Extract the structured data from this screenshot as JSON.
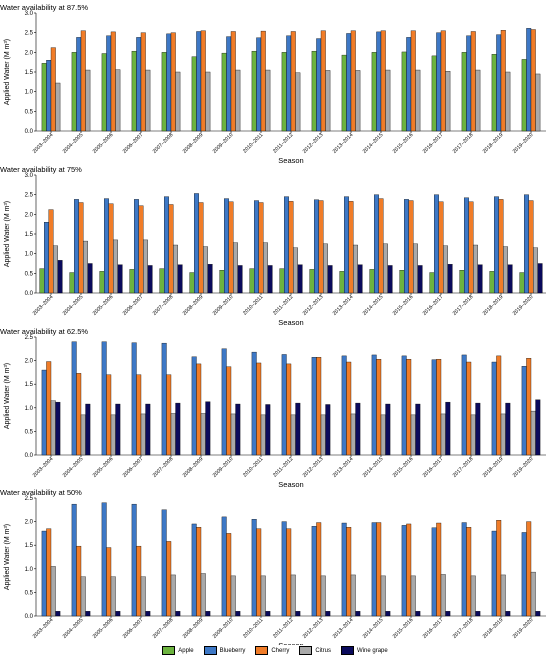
{
  "colors": {
    "Apple": "#6cb33f",
    "Blueberry": "#3d78c6",
    "Cherry": "#f07c28",
    "Citrus": "#a9a9a9",
    "Wine grape": "#0a0a5c"
  },
  "chart_data": [
    {
      "type": "bar",
      "title": "Water availability at 87.5%",
      "xlabel": "Season",
      "ylabel": "Applied Water (M m³)",
      "ylim": [
        0,
        3.0
      ],
      "yticks": [
        0.0,
        0.5,
        1.0,
        1.5,
        2.0,
        2.5,
        3.0
      ],
      "categories": [
        "2003–2004",
        "2004–2005",
        "2005–2006",
        "2006–2007",
        "2007–2008",
        "2008–2009",
        "2009–2010",
        "2010–2011",
        "2011–2012",
        "2012–2013",
        "2013–2014",
        "2014–2015",
        "2015–2016",
        "2016–2017",
        "2017–2018",
        "2018–2019",
        "2019–2020"
      ],
      "series": [
        {
          "name": "Apple",
          "values": [
            1.72,
            2.0,
            1.97,
            2.03,
            2.0,
            1.89,
            1.98,
            2.03,
            2.0,
            2.03,
            1.93,
            2.0,
            2.01,
            1.91,
            2.0,
            1.95,
            1.82
          ]
        },
        {
          "name": "Blueberry",
          "values": [
            1.8,
            2.38,
            2.42,
            2.38,
            2.47,
            2.53,
            2.4,
            2.37,
            2.42,
            2.35,
            2.48,
            2.52,
            2.38,
            2.5,
            2.42,
            2.45,
            2.61
          ]
        },
        {
          "name": "Cherry",
          "values": [
            2.12,
            2.55,
            2.52,
            2.5,
            2.5,
            2.55,
            2.53,
            2.54,
            2.53,
            2.55,
            2.55,
            2.55,
            2.55,
            2.55,
            2.53,
            2.56,
            2.58
          ]
        },
        {
          "name": "Citrus",
          "values": [
            1.22,
            1.55,
            1.56,
            1.55,
            1.5,
            1.5,
            1.55,
            1.55,
            1.48,
            1.54,
            1.54,
            1.55,
            1.55,
            1.52,
            1.55,
            1.5,
            1.45
          ]
        }
      ]
    },
    {
      "type": "bar",
      "title": "Water availability at 75%",
      "xlabel": "Season",
      "ylabel": "Applied Water (M m³)",
      "ylim": [
        0,
        3.0
      ],
      "yticks": [
        0.0,
        0.5,
        1.0,
        1.5,
        2.0,
        2.5,
        3.0
      ],
      "categories": [
        "2003–2004",
        "2004–2005",
        "2005–2006",
        "2006–2007",
        "2007–2008",
        "2008–2009",
        "2009–2010",
        "2010–2011",
        "2011–2012",
        "2012–2013",
        "2013–2014",
        "2014–2015",
        "2015–2016",
        "2016–2017",
        "2017–2018",
        "2018–2019",
        "2019–2020"
      ],
      "series": [
        {
          "name": "Apple",
          "values": [
            0.62,
            0.52,
            0.55,
            0.6,
            0.62,
            0.52,
            0.58,
            0.62,
            0.62,
            0.6,
            0.55,
            0.6,
            0.58,
            0.52,
            0.58,
            0.55,
            0.52
          ]
        },
        {
          "name": "Blueberry",
          "values": [
            1.8,
            2.38,
            2.4,
            2.38,
            2.45,
            2.53,
            2.4,
            2.35,
            2.45,
            2.37,
            2.45,
            2.5,
            2.38,
            2.5,
            2.42,
            2.45,
            2.5
          ]
        },
        {
          "name": "Cherry",
          "values": [
            2.12,
            2.3,
            2.27,
            2.22,
            2.25,
            2.3,
            2.32,
            2.3,
            2.33,
            2.35,
            2.33,
            2.4,
            2.35,
            2.32,
            2.32,
            2.38,
            2.35
          ]
        },
        {
          "name": "Citrus",
          "values": [
            1.2,
            1.32,
            1.35,
            1.35,
            1.22,
            1.18,
            1.28,
            1.28,
            1.15,
            1.25,
            1.22,
            1.25,
            1.25,
            1.2,
            1.22,
            1.18,
            1.15
          ]
        },
        {
          "name": "Wine grape",
          "values": [
            0.83,
            0.75,
            0.72,
            0.7,
            0.72,
            0.73,
            0.7,
            0.7,
            0.72,
            0.7,
            0.72,
            0.7,
            0.7,
            0.73,
            0.72,
            0.72,
            0.75
          ]
        }
      ]
    },
    {
      "type": "bar",
      "title": "Water availability at 62.5%",
      "xlabel": "Season",
      "ylabel": "Applied Water (M m³)",
      "ylim": [
        0,
        2.5
      ],
      "yticks": [
        0.0,
        0.5,
        1.0,
        1.5,
        2.0,
        2.5
      ],
      "categories": [
        "2003–2004",
        "2004–2005",
        "2005–2006",
        "2006–2007",
        "2007–2008",
        "2008–2009",
        "2009–2010",
        "2010–2011",
        "2011–2012",
        "2012–2013",
        "2013–2014",
        "2014–2015",
        "2015–2016",
        "2016–2017",
        "2017–2018",
        "2018–2019",
        "2019–2020"
      ],
      "series": [
        {
          "name": "Blueberry",
          "values": [
            1.8,
            2.4,
            2.4,
            2.38,
            2.37,
            2.08,
            2.25,
            2.18,
            2.13,
            2.07,
            2.1,
            2.12,
            2.1,
            2.02,
            2.12,
            1.97,
            1.88
          ]
        },
        {
          "name": "Cherry",
          "values": [
            1.98,
            1.73,
            1.7,
            1.7,
            1.7,
            1.93,
            1.87,
            1.95,
            1.93,
            2.07,
            1.97,
            2.03,
            2.03,
            2.03,
            1.97,
            2.1,
            2.05
          ]
        },
        {
          "name": "Citrus",
          "values": [
            1.15,
            0.85,
            0.85,
            0.87,
            0.88,
            0.88,
            0.87,
            0.85,
            0.85,
            0.85,
            0.87,
            0.85,
            0.85,
            0.87,
            0.85,
            0.87,
            0.93
          ]
        },
        {
          "name": "Wine grape",
          "values": [
            1.12,
            1.08,
            1.08,
            1.08,
            1.1,
            1.13,
            1.08,
            1.07,
            1.1,
            1.07,
            1.1,
            1.08,
            1.08,
            1.12,
            1.1,
            1.1,
            1.17
          ]
        }
      ]
    },
    {
      "type": "bar",
      "title": "Water availability at 50%",
      "xlabel": "Season",
      "ylabel": "Applied Water (M m³)",
      "ylim": [
        0,
        2.5
      ],
      "yticks": [
        0.0,
        0.5,
        1.0,
        1.5,
        2.0,
        2.5
      ],
      "categories": [
        "2003–2004",
        "2004–2005",
        "2005–2006",
        "2006–2007",
        "2007–2008",
        "2008–2009",
        "2009–2010",
        "2010–2011",
        "2011–2012",
        "2012–2013",
        "2013–2014",
        "2014–2015",
        "2015–2016",
        "2016–2017",
        "2017–2018",
        "2018–2019",
        "2019–2020"
      ],
      "series": [
        {
          "name": "Blueberry",
          "values": [
            1.8,
            2.37,
            2.4,
            2.37,
            2.25,
            1.95,
            2.1,
            2.05,
            2.0,
            1.9,
            1.97,
            1.98,
            1.92,
            1.87,
            1.98,
            1.8,
            1.77
          ]
        },
        {
          "name": "Cherry",
          "values": [
            1.85,
            1.48,
            1.45,
            1.48,
            1.58,
            1.88,
            1.75,
            1.85,
            1.85,
            1.98,
            1.88,
            1.98,
            1.95,
            1.97,
            1.88,
            2.03,
            2.0
          ]
        },
        {
          "name": "Citrus",
          "values": [
            1.05,
            0.83,
            0.83,
            0.83,
            0.87,
            0.9,
            0.85,
            0.85,
            0.87,
            0.85,
            0.87,
            0.85,
            0.85,
            0.88,
            0.85,
            0.87,
            0.93
          ]
        },
        {
          "name": "Wine grape",
          "values": [
            0.1,
            0.1,
            0.1,
            0.1,
            0.1,
            0.1,
            0.1,
            0.1,
            0.1,
            0.1,
            0.1,
            0.1,
            0.1,
            0.1,
            0.1,
            0.1,
            0.1
          ]
        }
      ]
    }
  ],
  "legend": {
    "placement": "bottom-center",
    "items": [
      {
        "name": "Apple",
        "color": "#6cb33f"
      },
      {
        "name": "Blueberry",
        "color": "#3d78c6"
      },
      {
        "name": "Cherry",
        "color": "#f07c28"
      },
      {
        "name": "Citrus",
        "color": "#a9a9a9"
      },
      {
        "name": "Wine grape",
        "color": "#0a0a5c"
      }
    ]
  }
}
